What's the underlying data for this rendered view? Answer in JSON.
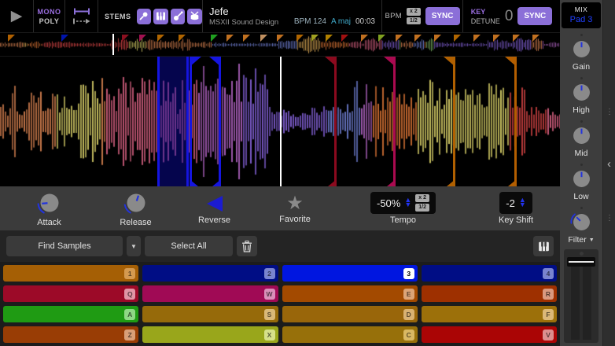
{
  "topbar": {
    "mono": "MONO",
    "poly": "POLY",
    "stems_label": "STEMS",
    "stems": [
      {
        "name": "vocals",
        "icon": "microphone-icon"
      },
      {
        "name": "melody",
        "icon": "piano-icon"
      },
      {
        "name": "bass",
        "icon": "guitar-icon"
      },
      {
        "name": "drums",
        "icon": "drum-icon"
      }
    ],
    "track": {
      "title": "Jefe",
      "artist": "MSXII Sound Design",
      "bpm": "BPM 124",
      "key": "A maj",
      "time": "00:03"
    },
    "bpm_section": {
      "label": "BPM",
      "x2": "x 2",
      "half": "1/2",
      "sync": "SYNC"
    },
    "key_section": {
      "label": "KEY",
      "detune": "DETUNE",
      "value": "0",
      "sync": "SYNC"
    }
  },
  "waveform": {
    "palette": [
      "#c8784a",
      "#c84040",
      "#c85a78",
      "#a05ab0",
      "#7a5ac8",
      "#d0a050",
      "#78b060",
      "#c8c060",
      "#6a78c8",
      "#c86a30"
    ],
    "playhead_pct": 50.0,
    "overview_playhead_pct": 20.1,
    "overview_markers": [
      {
        "x": 1.4,
        "color": "#b06000"
      },
      {
        "x": 11.0,
        "color": "#0014aa"
      },
      {
        "x": 21.8,
        "color": "#8b1020"
      },
      {
        "x": 24.8,
        "color": "#a01050"
      },
      {
        "x": 28.1,
        "color": "#b06500"
      },
      {
        "x": 31.9,
        "color": "#b06500"
      },
      {
        "x": 37.6,
        "color": "#20a020"
      },
      {
        "x": 40.4,
        "color": "#c07020"
      },
      {
        "x": 43.4,
        "color": "#c07020"
      },
      {
        "x": 46.5,
        "color": "#c09060"
      },
      {
        "x": 49.5,
        "color": "#c07020"
      },
      {
        "x": 53.0,
        "color": "#b06500"
      },
      {
        "x": 55.6,
        "color": "#a0a020"
      },
      {
        "x": 58.2,
        "color": "#b08000"
      },
      {
        "x": 61.0,
        "color": "#a01010"
      },
      {
        "x": 64.5,
        "color": "#c07020"
      },
      {
        "x": 67.6,
        "color": "#80a020"
      },
      {
        "x": 70.6,
        "color": "#c07020"
      },
      {
        "x": 74.0,
        "color": "#c07020"
      },
      {
        "x": 77.5,
        "color": "#c07020"
      },
      {
        "x": 81.0,
        "color": "#b06500"
      },
      {
        "x": 84.6,
        "color": "#c07020"
      },
      {
        "x": 88.1,
        "color": "#c07020"
      },
      {
        "x": 91.6,
        "color": "#c07020"
      },
      {
        "x": 95.1,
        "color": "#c07020"
      }
    ],
    "sections": [
      {
        "x": 28.1,
        "w": 5.6,
        "color": "#1515e0",
        "fill": "rgba(10,10,170,0.45)",
        "corners": false
      },
      {
        "x": 33.9,
        "w": 5.6,
        "color": "#1515e0",
        "fill": "transparent",
        "corners": true
      }
    ],
    "markers": [
      {
        "x": 59.7,
        "color": "#8b0a1e"
      },
      {
        "x": 70.2,
        "color": "#aa0a50"
      },
      {
        "x": 80.9,
        "color": "#b06000"
      },
      {
        "x": 91.9,
        "color": "#b35e00"
      }
    ]
  },
  "controls": {
    "attack": {
      "label": "Attack",
      "angle": -95
    },
    "release": {
      "label": "Release",
      "angle": 18
    },
    "reverse": {
      "label": "Reverse"
    },
    "favorite": {
      "label": "Favorite"
    },
    "tempo": {
      "value": "-50%",
      "label": "Tempo",
      "x2": "x 2",
      "half": "1/2"
    },
    "key_shift": {
      "value": "-2",
      "label": "Key Shift"
    }
  },
  "sample_bar": {
    "find": "Find Samples",
    "select_all": "Select All"
  },
  "pads": [
    {
      "key": "1",
      "color": "#a55f05",
      "badge": "#d49a50",
      "selected": false
    },
    {
      "key": "2",
      "color": "#000d85",
      "badge": "#7a84cf",
      "selected": false
    },
    {
      "key": "3",
      "color": "#0016e0",
      "badge": "#ffffff",
      "selected": true
    },
    {
      "key": "4",
      "color": "#000d85",
      "badge": "#7a84cf",
      "selected": false
    },
    {
      "key": "Q",
      "color": "#9c0a28",
      "badge": "#e095a5",
      "selected": false
    },
    {
      "key": "W",
      "color": "#a00a55",
      "badge": "#da8fba",
      "selected": false
    },
    {
      "key": "E",
      "color": "#a34a00",
      "badge": "#dca477",
      "selected": false
    },
    {
      "key": "R",
      "color": "#9e3000",
      "badge": "#d99a80",
      "selected": false
    },
    {
      "key": "A",
      "color": "#1f9b13",
      "badge": "#8fd885",
      "selected": false
    },
    {
      "key": "S",
      "color": "#966a0a",
      "badge": "#d9b878",
      "selected": false
    },
    {
      "key": "D",
      "color": "#99660a",
      "badge": "#d9b272",
      "selected": false
    },
    {
      "key": "F",
      "color": "#9c700a",
      "badge": "#dcb878",
      "selected": false
    },
    {
      "key": "Z",
      "color": "#993d05",
      "badge": "#d99f78",
      "selected": false
    },
    {
      "key": "X",
      "color": "#99a61b",
      "badge": "#d6e08a",
      "selected": false
    },
    {
      "key": "C",
      "color": "#97700a",
      "badge": "#d9b863",
      "selected": false
    },
    {
      "key": "V",
      "color": "#aa0505",
      "badge": "#dc8f8f",
      "selected": false
    }
  ],
  "mix": {
    "title": "MIX",
    "subtitle": "Pad 3",
    "subtitle_color": "#2040ff",
    "knobs": [
      {
        "label": "Gain"
      },
      {
        "label": "High"
      },
      {
        "label": "Mid"
      },
      {
        "label": "Low"
      }
    ],
    "filter_label": "Filter",
    "filter_angle": -45
  },
  "colors": {
    "accent_purple": "#8b6fd8",
    "accent_blue": "#1b1bd0",
    "knob_body": "#8a8a8a",
    "knob_needle": "#2233dd"
  }
}
